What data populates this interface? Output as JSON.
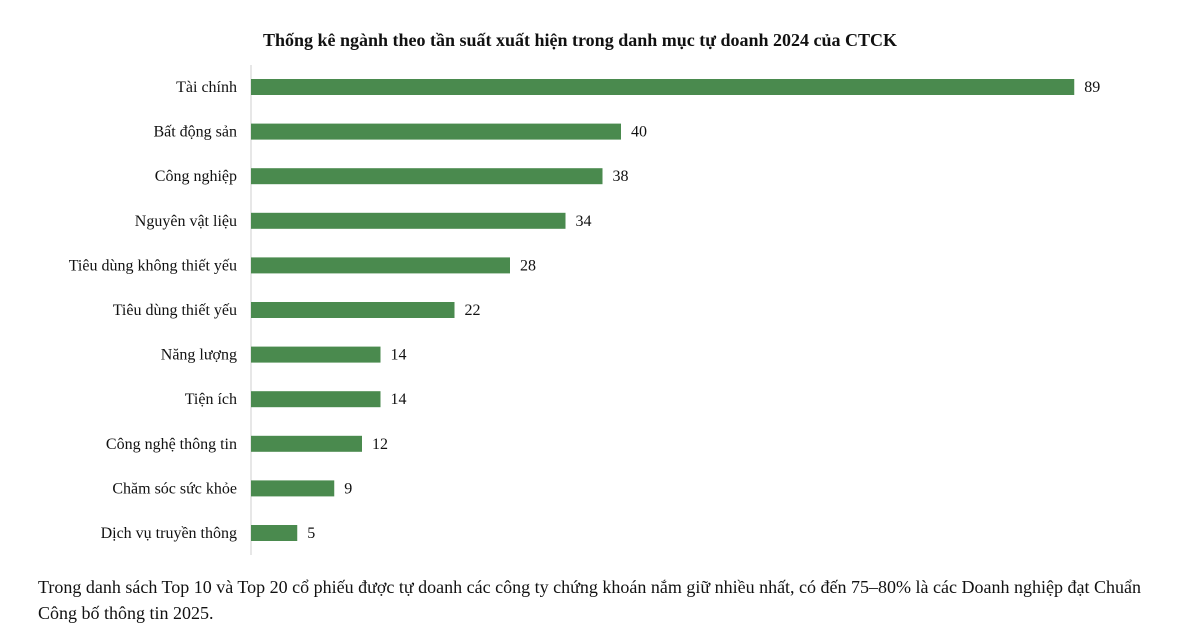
{
  "chart_data": {
    "type": "bar",
    "orientation": "horizontal",
    "title": "Thống kê ngành theo tần suất xuất hiện trong danh mục tự doanh 2024 của CTCK",
    "categories": [
      "Tài chính",
      "Bất động sản",
      "Công nghiệp",
      "Nguyên vật liệu",
      "Tiêu dùng không thiết yếu",
      "Tiêu dùng thiết yếu",
      "Năng lượng",
      "Tiện ích",
      "Công nghệ thông tin",
      "Chăm sóc sức khỏe",
      "Dịch vụ truyền thông"
    ],
    "values": [
      89,
      40,
      38,
      34,
      28,
      22,
      14,
      14,
      12,
      9,
      5
    ],
    "data_labels": true,
    "grid": false,
    "bar_color": "#4a8a4e"
  },
  "caption": "Trong danh sách Top 10 và Top 20 cổ phiếu được tự doanh các công ty chứng khoán nắm giữ nhiều nhất, có đến 75–80% là các Doanh nghiệp đạt Chuẩn Công bố thông tin 2025."
}
